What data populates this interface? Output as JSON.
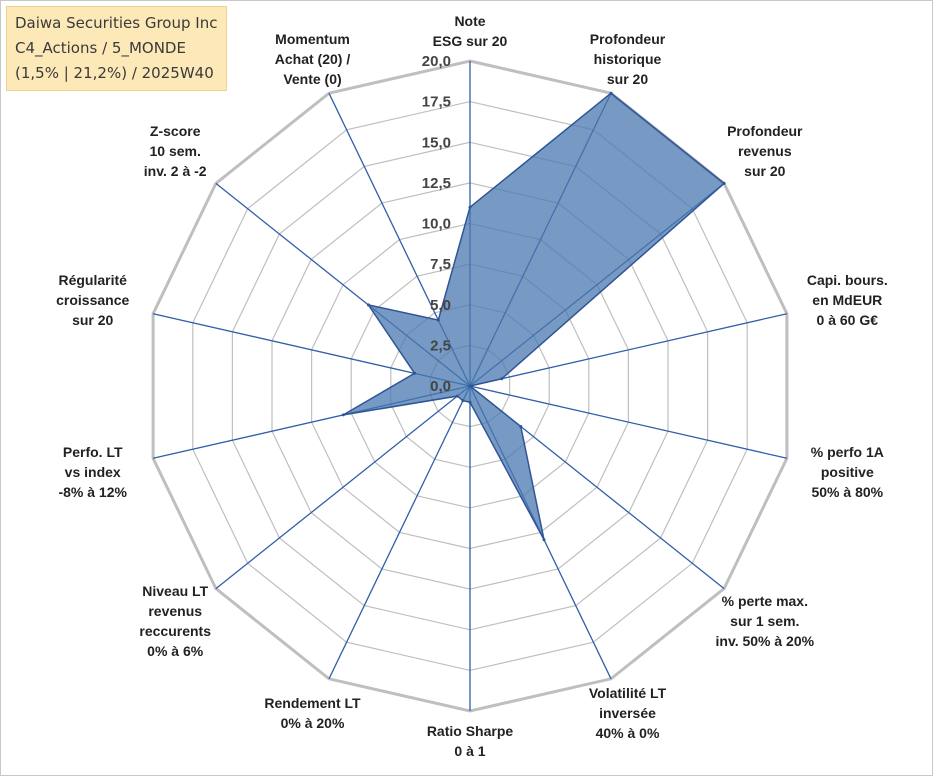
{
  "info": {
    "company": "Daiwa Securities Group Inc",
    "category": "C4_Actions / 5_MONDE",
    "range": "(1,5% | 21,2%) / 2025W40"
  },
  "colors": {
    "grid": "#bfbfbf",
    "spoke": "#2f5fa8",
    "fill": "#4a78b0",
    "stroke": "#2f5596"
  },
  "chart_data": {
    "type": "radar",
    "title": "",
    "rmin": 0,
    "rmax": 20,
    "tick_step": 2.5,
    "tick_labels": [
      "0,0",
      "2,5",
      "5,0",
      "7,5",
      "10,0",
      "12,5",
      "15,0",
      "17,5",
      "20,0"
    ],
    "axes": [
      {
        "lines": [
          "Note",
          "ESG sur 20"
        ],
        "value": 11.0
      },
      {
        "lines": [
          "Profondeur",
          "historique",
          "sur 20"
        ],
        "value": 20.0
      },
      {
        "lines": [
          "Profondeur",
          "revenus",
          "sur 20"
        ],
        "value": 20.0
      },
      {
        "lines": [
          "Capi. bours.",
          "en MdEUR",
          "0 à 60 G€"
        ],
        "value": 2.0
      },
      {
        "lines": [
          "% perfo 1A",
          "positive",
          "50% à 80%"
        ],
        "value": 0.0
      },
      {
        "lines": [
          "% perte max.",
          "sur 1 sem.",
          "inv. 50% à 20%"
        ],
        "value": 4.0
      },
      {
        "lines": [
          "Volatilité LT",
          "inversée",
          "40% à 0%"
        ],
        "value": 10.5
      },
      {
        "lines": [
          "Ratio Sharpe",
          "0 à 1"
        ],
        "value": 1.0
      },
      {
        "lines": [
          "Rendement LT",
          "0% à 20%"
        ],
        "value": 1.0
      },
      {
        "lines": [
          "Niveau LT",
          "revenus",
          "reccurents",
          "0% à 6%"
        ],
        "value": 1.0
      },
      {
        "lines": [
          "Perfo. LT",
          "vs index",
          "-8% à 12%"
        ],
        "value": 8.0
      },
      {
        "lines": [
          "Régularité",
          "croissance",
          "sur 20"
        ],
        "value": 3.5
      },
      {
        "lines": [
          "Z-score",
          "10 sem.",
          "inv. 2 à -2"
        ],
        "value": 8.0
      },
      {
        "lines": [
          "Momentum",
          "Achat (20) /",
          "Vente (0)"
        ],
        "value": 4.5
      }
    ]
  }
}
